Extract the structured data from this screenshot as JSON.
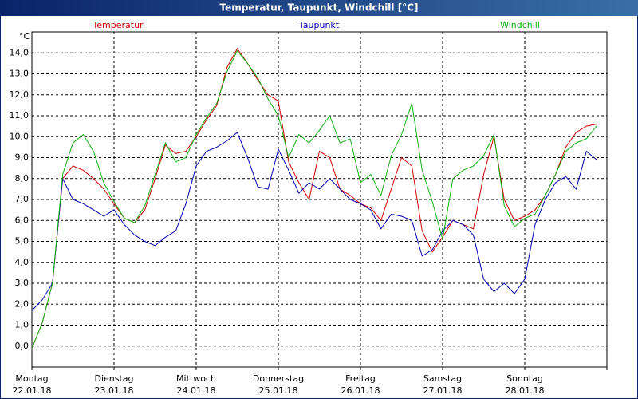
{
  "chart_data": {
    "type": "line",
    "title": "Temperatur, Taupunkt, Windchill [°C]",
    "y_unit": "°C",
    "x": [
      0,
      3,
      6,
      9,
      12,
      15,
      18,
      21,
      24,
      27,
      30,
      33,
      36,
      39,
      42,
      45,
      48,
      51,
      54,
      57,
      60,
      63,
      66,
      69,
      72,
      75,
      78,
      81,
      84,
      87,
      90,
      93,
      96,
      99,
      102,
      105,
      108,
      111,
      114,
      117,
      120,
      123,
      126,
      129,
      132,
      135,
      138,
      141,
      144,
      147,
      150,
      153,
      156,
      159,
      162,
      165
    ],
    "xlim": [
      0,
      168
    ],
    "xticks": [
      {
        "value": 0,
        "label": "Montag",
        "date": "22.01.18"
      },
      {
        "value": 24,
        "label": "Dienstag",
        "date": "23.01.18"
      },
      {
        "value": 48,
        "label": "Mittwoch",
        "date": "24.01.18"
      },
      {
        "value": 72,
        "label": "Donnerstag",
        "date": "25.01.18"
      },
      {
        "value": 96,
        "label": "Freitag",
        "date": "26.01.18"
      },
      {
        "value": 120,
        "label": "Samstag",
        "date": "27.01.18"
      },
      {
        "value": 144,
        "label": "Sonntag",
        "date": "28.01.18"
      },
      {
        "value": 168,
        "label": "",
        "date": ""
      }
    ],
    "ylim": [
      -1,
      15
    ],
    "yticks": [
      {
        "value": 0,
        "label": "0,0"
      },
      {
        "value": 1,
        "label": "1,0"
      },
      {
        "value": 2,
        "label": "2,0"
      },
      {
        "value": 3,
        "label": "3,0"
      },
      {
        "value": 4,
        "label": "4,0"
      },
      {
        "value": 5,
        "label": "5,0"
      },
      {
        "value": 6,
        "label": "6,0"
      },
      {
        "value": 7,
        "label": "7,0"
      },
      {
        "value": 8,
        "label": "8,0"
      },
      {
        "value": 9,
        "label": "9,0"
      },
      {
        "value": 10,
        "label": "10,0"
      },
      {
        "value": 11,
        "label": "11,0"
      },
      {
        "value": 12,
        "label": "12,0"
      },
      {
        "value": 13,
        "label": "13,0"
      },
      {
        "value": 14,
        "label": "14,0"
      }
    ],
    "grid": true,
    "series": [
      {
        "name": "Temperatur",
        "color": "#d00000",
        "values": [
          -0.1,
          1.1,
          3.0,
          8.0,
          8.6,
          8.4,
          8.0,
          7.5,
          6.8,
          6.1,
          5.9,
          6.5,
          8.0,
          9.6,
          9.2,
          9.3,
          10.0,
          10.8,
          11.5,
          13.3,
          14.2,
          13.5,
          12.7,
          12.0,
          11.7,
          8.8,
          7.8,
          7.0,
          9.3,
          9.0,
          7.5,
          7.2,
          6.8,
          6.6,
          6.0,
          7.5,
          9.0,
          8.6,
          5.5,
          4.5,
          5.2,
          6.0,
          5.8,
          5.6,
          8.2,
          10.0,
          7.0,
          6.0,
          6.2,
          6.5,
          7.2,
          8.2,
          9.5,
          10.2,
          10.5,
          10.6
        ]
      },
      {
        "name": "Taupunkt",
        "color": "#0000b0",
        "values": [
          1.7,
          2.2,
          3.0,
          8.0,
          7.0,
          6.8,
          6.5,
          6.2,
          6.5,
          5.8,
          5.3,
          5.0,
          4.8,
          5.2,
          5.5,
          6.8,
          8.6,
          9.3,
          9.5,
          9.8,
          10.2,
          9.0,
          7.6,
          7.5,
          9.4,
          8.4,
          7.3,
          7.8,
          7.5,
          8.0,
          7.5,
          7.0,
          6.8,
          6.5,
          5.6,
          6.3,
          6.2,
          6.0,
          4.3,
          4.6,
          5.5,
          6.0,
          5.8,
          5.3,
          3.2,
          2.6,
          3.0,
          2.5,
          3.2,
          5.8,
          7.0,
          7.8,
          8.1,
          7.5,
          9.3,
          8.9
        ]
      },
      {
        "name": "Windchill",
        "color": "#10b010",
        "values": [
          -0.1,
          1.1,
          3.0,
          8.2,
          9.7,
          10.1,
          9.3,
          7.8,
          6.9,
          6.1,
          5.9,
          6.7,
          8.2,
          9.7,
          8.8,
          9.0,
          10.1,
          10.9,
          11.6,
          13.1,
          14.1,
          13.5,
          12.8,
          11.8,
          11.0,
          9.0,
          10.1,
          9.7,
          10.3,
          11.0,
          9.7,
          9.9,
          7.8,
          8.2,
          7.2,
          9.1,
          10.1,
          11.6,
          8.4,
          6.9,
          5.1,
          8.0,
          8.4,
          8.6,
          9.1,
          10.1,
          6.7,
          5.7,
          6.1,
          6.3,
          7.2,
          8.2,
          9.3,
          9.7,
          9.9,
          10.5
        ]
      }
    ]
  }
}
